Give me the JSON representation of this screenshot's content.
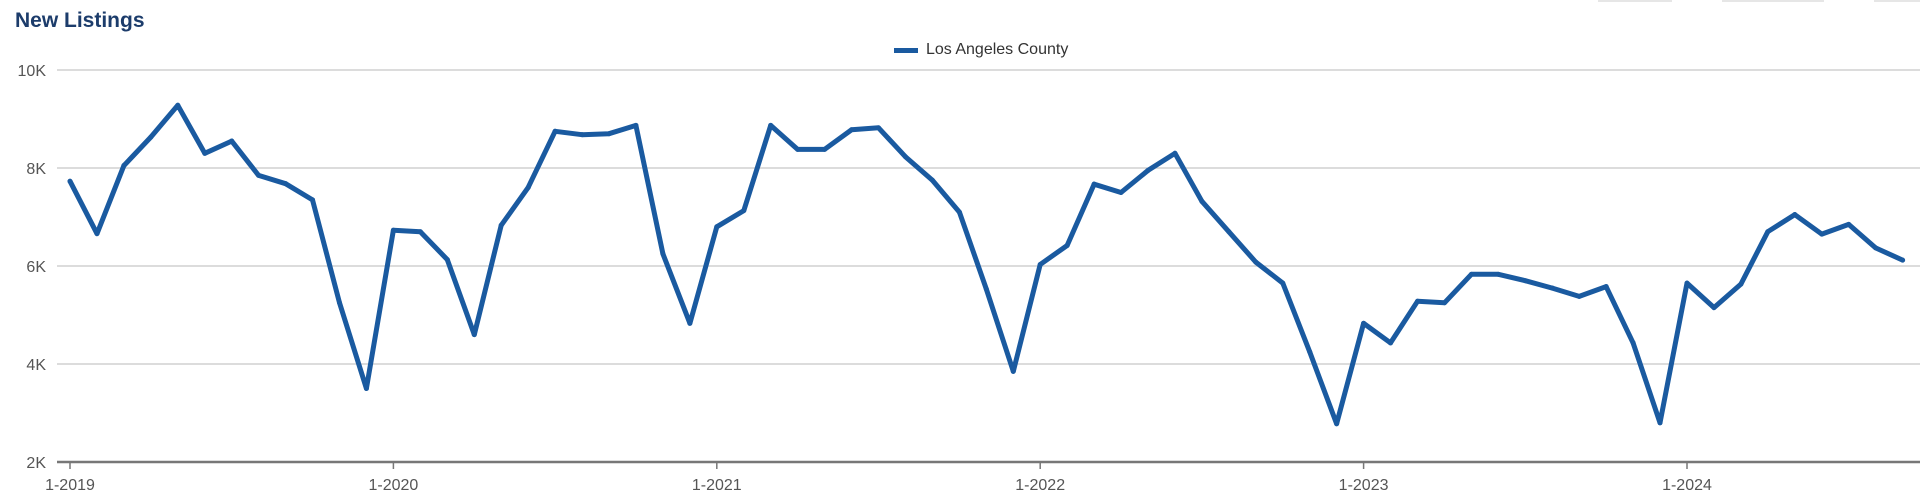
{
  "title": "New Listings",
  "legend": {
    "label": "Los Angeles County",
    "color": "#1a5aa0"
  },
  "chart_data": {
    "type": "line",
    "title": "New Listings",
    "xlabel": "",
    "ylabel": "",
    "x_start": "2019-01",
    "x_end": "2024-09",
    "ylim": [
      2000,
      10000
    ],
    "y_ticks": [
      {
        "value": 2000,
        "label": "2K"
      },
      {
        "value": 4000,
        "label": "4K"
      },
      {
        "value": 6000,
        "label": "6K"
      },
      {
        "value": 8000,
        "label": "8K"
      },
      {
        "value": 10000,
        "label": "10K"
      }
    ],
    "x_ticks": [
      {
        "date": "2019-01",
        "label": "1-2019"
      },
      {
        "date": "2020-01",
        "label": "1-2020"
      },
      {
        "date": "2021-01",
        "label": "1-2021"
      },
      {
        "date": "2022-01",
        "label": "1-2022"
      },
      {
        "date": "2023-01",
        "label": "1-2023"
      },
      {
        "date": "2024-01",
        "label": "1-2024"
      }
    ],
    "grid": true,
    "legend_position": "top-center",
    "series": [
      {
        "name": "Los Angeles County",
        "color": "#1a5aa0",
        "points": [
          {
            "x": "2019-01",
            "y": 7730
          },
          {
            "x": "2019-02",
            "y": 6660
          },
          {
            "x": "2019-03",
            "y": 8050
          },
          {
            "x": "2019-04",
            "y": 8630
          },
          {
            "x": "2019-05",
            "y": 9280
          },
          {
            "x": "2019-06",
            "y": 8300
          },
          {
            "x": "2019-07",
            "y": 8550
          },
          {
            "x": "2019-08",
            "y": 7850
          },
          {
            "x": "2019-09",
            "y": 7680
          },
          {
            "x": "2019-10",
            "y": 7350
          },
          {
            "x": "2019-11",
            "y": 5250
          },
          {
            "x": "2019-12",
            "y": 3500
          },
          {
            "x": "2020-01",
            "y": 6730
          },
          {
            "x": "2020-02",
            "y": 6700
          },
          {
            "x": "2020-03",
            "y": 6130
          },
          {
            "x": "2020-04",
            "y": 4600
          },
          {
            "x": "2020-05",
            "y": 6830
          },
          {
            "x": "2020-06",
            "y": 7600
          },
          {
            "x": "2020-07",
            "y": 8750
          },
          {
            "x": "2020-08",
            "y": 8680
          },
          {
            "x": "2020-09",
            "y": 8700
          },
          {
            "x": "2020-10",
            "y": 8870
          },
          {
            "x": "2020-11",
            "y": 6250
          },
          {
            "x": "2020-12",
            "y": 4830
          },
          {
            "x": "2021-01",
            "y": 6800
          },
          {
            "x": "2021-02",
            "y": 7130
          },
          {
            "x": "2021-03",
            "y": 8870
          },
          {
            "x": "2021-04",
            "y": 8380
          },
          {
            "x": "2021-05",
            "y": 8380
          },
          {
            "x": "2021-06",
            "y": 8780
          },
          {
            "x": "2021-07",
            "y": 8820
          },
          {
            "x": "2021-08",
            "y": 8230
          },
          {
            "x": "2021-09",
            "y": 7750
          },
          {
            "x": "2021-10",
            "y": 7100
          },
          {
            "x": "2021-11",
            "y": 5530
          },
          {
            "x": "2021-12",
            "y": 3850
          },
          {
            "x": "2022-01",
            "y": 6030
          },
          {
            "x": "2022-02",
            "y": 6420
          },
          {
            "x": "2022-03",
            "y": 7670
          },
          {
            "x": "2022-04",
            "y": 7500
          },
          {
            "x": "2022-05",
            "y": 7950
          },
          {
            "x": "2022-06",
            "y": 8300
          },
          {
            "x": "2022-07",
            "y": 7320
          },
          {
            "x": "2022-08",
            "y": 6700
          },
          {
            "x": "2022-09",
            "y": 6080
          },
          {
            "x": "2022-10",
            "y": 5650
          },
          {
            "x": "2022-11",
            "y": 4250
          },
          {
            "x": "2022-12",
            "y": 2780
          },
          {
            "x": "2023-01",
            "y": 4830
          },
          {
            "x": "2023-02",
            "y": 4430
          },
          {
            "x": "2023-03",
            "y": 5280
          },
          {
            "x": "2023-04",
            "y": 5250
          },
          {
            "x": "2023-05",
            "y": 5830
          },
          {
            "x": "2023-06",
            "y": 5830
          },
          {
            "x": "2023-07",
            "y": 5700
          },
          {
            "x": "2023-08",
            "y": 5550
          },
          {
            "x": "2023-09",
            "y": 5380
          },
          {
            "x": "2023-10",
            "y": 5580
          },
          {
            "x": "2023-11",
            "y": 4430
          },
          {
            "x": "2023-12",
            "y": 2800
          },
          {
            "x": "2024-01",
            "y": 5650
          },
          {
            "x": "2024-02",
            "y": 5150
          },
          {
            "x": "2024-03",
            "y": 5630
          },
          {
            "x": "2024-04",
            "y": 6700
          },
          {
            "x": "2024-05",
            "y": 7050
          },
          {
            "x": "2024-06",
            "y": 6650
          },
          {
            "x": "2024-07",
            "y": 6850
          },
          {
            "x": "2024-08",
            "y": 6370
          },
          {
            "x": "2024-09",
            "y": 6120
          }
        ]
      }
    ]
  }
}
